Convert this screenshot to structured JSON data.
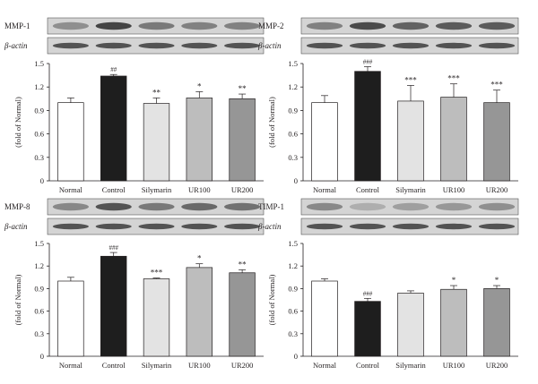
{
  "colors": {
    "Normal": "#ffffff",
    "Control": "#1e1e1e",
    "Silymarin": "#e3e3e3",
    "UR100": "#bdbdbd",
    "UR200": "#969696",
    "axis": "#231f20",
    "blot_bg": "#d4d4d4",
    "band": "#3c3c3c"
  },
  "chart_data": [
    {
      "type": "bar",
      "blot_label": "MMP-1",
      "actin_label": "β-actin",
      "categories": [
        "Normal",
        "Control",
        "Silymarin",
        "UR100",
        "UR200"
      ],
      "values": [
        1.0,
        1.34,
        0.99,
        1.06,
        1.05
      ],
      "errors": [
        0.06,
        0.02,
        0.07,
        0.08,
        0.06
      ],
      "significance": [
        "",
        "##",
        "**",
        "*",
        "**"
      ],
      "ylabel": "(fold of Normal)",
      "ylim": [
        0,
        1.5
      ],
      "yticks": [
        "0",
        "0.3",
        "0.6",
        "0.9",
        "1.2",
        "1.5"
      ],
      "band_intensity": [
        0.45,
        0.95,
        0.6,
        0.55,
        0.55
      ]
    },
    {
      "type": "bar",
      "blot_label": "MMP-2",
      "actin_label": "β-actin",
      "categories": [
        "Normal",
        "Control",
        "Silymarin",
        "UR100",
        "UR200"
      ],
      "values": [
        1.0,
        1.4,
        1.02,
        1.07,
        1.0
      ],
      "errors": [
        0.09,
        0.06,
        0.2,
        0.17,
        0.16
      ],
      "significance": [
        "",
        "###",
        "***",
        "***",
        "***"
      ],
      "ylabel": "(fold of Normal)",
      "ylim": [
        0,
        1.5
      ],
      "yticks": [
        "0",
        "0.3",
        "0.6",
        "0.9",
        "1.2",
        "1.5"
      ],
      "band_intensity": [
        0.55,
        0.9,
        0.75,
        0.8,
        0.8
      ]
    },
    {
      "type": "bar",
      "blot_label": "MMP-8",
      "actin_label": "β-actin",
      "categories": [
        "Normal",
        "Control",
        "Silymarin",
        "UR100",
        "UR200"
      ],
      "values": [
        1.0,
        1.33,
        1.03,
        1.18,
        1.11
      ],
      "errors": [
        0.05,
        0.05,
        0.01,
        0.05,
        0.04
      ],
      "significance": [
        "",
        "###",
        "***",
        "*",
        "**"
      ],
      "ylabel": "(fold of Normal)",
      "ylim": [
        0,
        1.5
      ],
      "yticks": [
        "0",
        "0.3",
        "0.6",
        "0.9",
        "1.2",
        "1.5"
      ],
      "band_intensity": [
        0.5,
        0.85,
        0.6,
        0.7,
        0.65
      ]
    },
    {
      "type": "bar",
      "blot_label": "TIMP-1",
      "actin_label": "β-actin",
      "categories": [
        "Normal",
        "Control",
        "Silymarin",
        "UR100",
        "UR200"
      ],
      "values": [
        1.0,
        0.73,
        0.84,
        0.89,
        0.9
      ],
      "errors": [
        0.03,
        0.04,
        0.03,
        0.05,
        0.04
      ],
      "significance": [
        "",
        "###",
        "",
        "*",
        "*"
      ],
      "ylabel": "(fold of Normal)",
      "ylim": [
        0,
        1.5
      ],
      "yticks": [
        "0",
        "0.3",
        "0.6",
        "0.9",
        "1.2",
        "1.5"
      ],
      "band_intensity": [
        0.5,
        0.25,
        0.35,
        0.4,
        0.45
      ]
    }
  ]
}
